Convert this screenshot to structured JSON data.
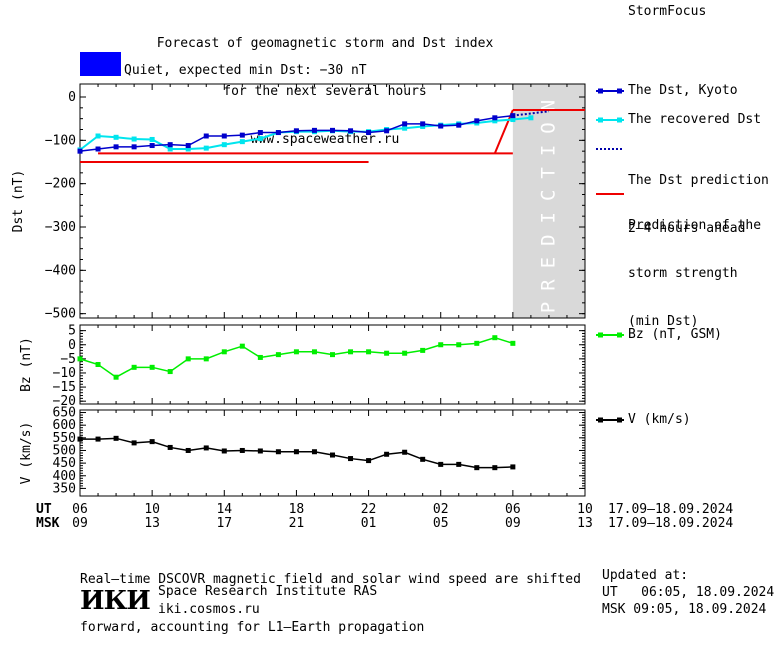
{
  "header": {
    "title_lines": [
      "Forecast of geomagnetic storm and Dst index",
      "for the next several hours",
      "www.spaceweather.ru"
    ],
    "brand": "StormFocus",
    "status_text": "Quiet, expected min Dst: −30 nT",
    "status_color": "#0000ff"
  },
  "legend": {
    "dst_kyoto": "The Dst, Kyoto",
    "dst_recovered": "The recovered Dst",
    "dst_prediction": [
      "The Dst prediction",
      "2–4 hours ahead"
    ],
    "storm_prediction": [
      "Prediction of the",
      "storm strength",
      "(min Dst)"
    ],
    "bz": "Bz (nT, GSM)",
    "v": "V (km/s)"
  },
  "prediction_band_label": "PREDICTION",
  "time_axis": {
    "ut_label": "UT",
    "msk_label": "MSK",
    "ut_ticks": [
      "06",
      "10",
      "14",
      "18",
      "22",
      "02",
      "06",
      "10"
    ],
    "msk_ticks": [
      "09",
      "13",
      "17",
      "21",
      "01",
      "05",
      "09",
      "13"
    ],
    "date_range_ut": "17.09–18.09.2024",
    "date_range_msk": "17.09–18.09.2024"
  },
  "footer": {
    "note_lines": [
      "Real–time DSCOVR magnetic field and solar wind speed are shifted",
      "forward, accounting for L1–Earth propagation"
    ],
    "logo_text": "ИКИ",
    "institute": "Space Research Institute RAS",
    "url": "iki.cosmos.ru",
    "updated_label": "Updated at:",
    "updated_ut": "UT   06:05, 18.09.2024",
    "updated_msk": "MSK 09:05, 18.09.2024"
  },
  "colors": {
    "dst_kyoto": "#0000cc",
    "dst_recovered": "#00e5ee",
    "dst_prediction": "#0000aa",
    "storm_prediction": "#ee0000",
    "bz": "#00ee00",
    "v": "#000000",
    "prediction_band": "#d9d9d9"
  },
  "chart_data": [
    {
      "type": "line",
      "ylabel": "Dst (nT)",
      "xlim_hours_ut": [
        6,
        34
      ],
      "ylim": [
        -510,
        30
      ],
      "yticks": [
        0,
        -100,
        -200,
        -300,
        -400,
        -500
      ],
      "prediction_start_hour": 30,
      "series": [
        {
          "name": "The Dst, Kyoto",
          "x": [
            6,
            7,
            8,
            9,
            10,
            11,
            12,
            13,
            14,
            15,
            16,
            17,
            18,
            19,
            20,
            21,
            22,
            23,
            24,
            25,
            26,
            27,
            28,
            29,
            30
          ],
          "values": [
            -125,
            -120,
            -115,
            -115,
            -112,
            -110,
            -112,
            -90,
            -90,
            -88,
            -82,
            -82,
            -78,
            -77,
            -77,
            -78,
            -82,
            -78,
            -62,
            -62,
            -67,
            -65,
            -55,
            -48,
            -43
          ]
        },
        {
          "name": "The recovered Dst",
          "x": [
            6,
            7,
            8,
            9,
            10,
            11,
            12,
            13,
            14,
            15,
            16,
            17,
            18,
            19,
            20,
            21,
            22,
            23,
            24,
            25,
            26,
            27,
            28,
            29,
            30,
            31
          ],
          "values": [
            -122,
            -90,
            -93,
            -97,
            -98,
            -120,
            -120,
            -118,
            -110,
            -103,
            -96,
            -82,
            -80,
            -80,
            -78,
            -80,
            -80,
            -75,
            -72,
            -68,
            -65,
            -62,
            -60,
            -55,
            -52,
            -48
          ]
        },
        {
          "name": "The Dst prediction 2–4 hours ahead",
          "x": [
            30,
            31,
            32
          ],
          "values": [
            -43,
            -38,
            -33
          ]
        },
        {
          "name": "Prediction of the storm strength (min Dst)",
          "segments": [
            {
              "x": [
                7,
                30
              ],
              "values": [
                -130,
                -130
              ]
            },
            {
              "x": [
                6,
                22
              ],
              "values": [
                -150,
                -150
              ]
            },
            {
              "x": [
                30,
                34
              ],
              "values": [
                -30,
                -30
              ]
            }
          ]
        }
      ]
    },
    {
      "type": "line",
      "ylabel": "Bz (nT)",
      "ylim": [
        -21,
        7
      ],
      "yticks": [
        5,
        0,
        -5,
        -10,
        -15,
        -20
      ],
      "series": [
        {
          "name": "Bz (nT, GSM)",
          "x": [
            6,
            7,
            8,
            9,
            10,
            11,
            12,
            13,
            14,
            15,
            16,
            17,
            18,
            19,
            20,
            21,
            22,
            23,
            24,
            25,
            26,
            27,
            28,
            29,
            30,
            31
          ],
          "values": [
            -5,
            -7,
            -11.5,
            -8,
            -8,
            -9.5,
            -5,
            -5,
            -2.5,
            -0.5,
            -4.5,
            -3.5,
            -2.5,
            -2.5,
            -3.5,
            -2.5,
            -2.5,
            -3,
            -3,
            -2,
            0,
            0,
            0.5,
            2.5,
            0.5,
            null
          ]
        }
      ]
    },
    {
      "type": "line",
      "ylabel": "V (km/s)",
      "ylim": [
        320,
        660
      ],
      "yticks": [
        650,
        600,
        550,
        500,
        450,
        400,
        350
      ],
      "series": [
        {
          "name": "V (km/s)",
          "x": [
            6,
            7,
            8,
            9,
            10,
            11,
            12,
            13,
            14,
            15,
            16,
            17,
            18,
            19,
            20,
            21,
            22,
            23,
            24,
            25,
            26,
            27,
            28,
            29,
            30,
            31
          ],
          "values": [
            545,
            545,
            548,
            530,
            535,
            512,
            500,
            510,
            498,
            500,
            498,
            495,
            495,
            495,
            482,
            468,
            460,
            485,
            493,
            465,
            445,
            445,
            432,
            432,
            435,
            null
          ]
        }
      ]
    }
  ]
}
